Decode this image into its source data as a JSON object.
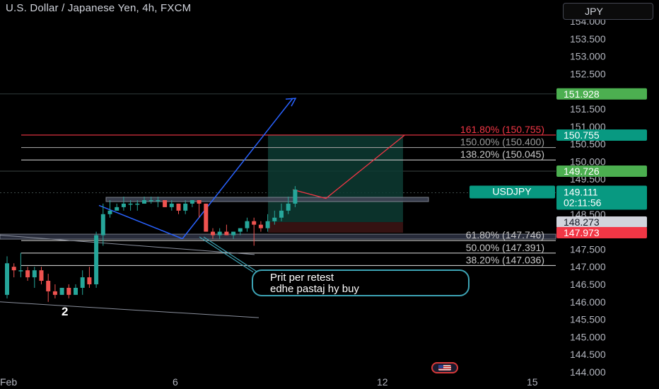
{
  "header": {
    "title": "U.S. Dollar / Japanese Yen, 4h, FXCM",
    "currency": "JPY"
  },
  "comment": {
    "line1": "Prit per retest",
    "line2": "edhe pastaj hy buy"
  },
  "wave_label": "2",
  "colors": {
    "bull": "#26a69a",
    "bear": "#ef5350",
    "green_badge": "#4caf50",
    "red_badge": "#f23645",
    "teal_badge": "#089981",
    "fib_red": "#f23645",
    "blue_line": "#2962ff"
  },
  "chart_data": {
    "type": "candlestick",
    "symbol": "USDJPY",
    "timeframe": "4h",
    "ylim": [
      144.0,
      154.0
    ],
    "y_ticks": [
      "154.000",
      "153.500",
      "153.000",
      "152.500",
      "151.500",
      "151.000",
      "150.500",
      "150.000",
      "149.500",
      "148.500",
      "147.500",
      "147.000",
      "146.500",
      "146.000",
      "145.500",
      "145.000",
      "144.500",
      "144.000"
    ],
    "x_ticks": [
      "Feb",
      "6",
      "12",
      "15"
    ],
    "candles": [
      [
        146.2,
        147.3,
        146.1,
        147.1
      ],
      [
        147.0,
        147.1,
        146.7,
        146.9
      ],
      [
        146.9,
        147.4,
        146.7,
        146.9
      ],
      [
        146.9,
        147.0,
        146.6,
        146.7
      ],
      [
        146.7,
        147.0,
        146.4,
        146.9
      ],
      [
        146.9,
        147.0,
        146.5,
        146.6
      ],
      [
        146.6,
        146.8,
        146.0,
        146.3
      ],
      [
        146.3,
        146.5,
        146.1,
        146.2
      ],
      [
        146.2,
        146.4,
        146.2,
        146.4
      ],
      [
        146.4,
        146.5,
        146.1,
        146.2
      ],
      [
        146.2,
        146.5,
        146.2,
        146.4
      ],
      [
        146.4,
        146.9,
        146.2,
        146.7
      ],
      [
        146.7,
        147.0,
        146.4,
        146.5
      ],
      [
        146.5,
        148.0,
        146.4,
        147.9
      ],
      [
        147.9,
        148.8,
        147.6,
        148.5
      ],
      [
        148.5,
        148.9,
        148.4,
        148.6
      ],
      [
        148.6,
        148.8,
        148.6,
        148.7
      ],
      [
        148.7,
        149.0,
        148.6,
        148.8
      ],
      [
        148.8,
        148.9,
        148.6,
        148.8
      ],
      [
        148.8,
        148.9,
        148.6,
        148.8
      ],
      [
        148.8,
        149.0,
        148.8,
        148.9
      ],
      [
        148.9,
        149.0,
        148.8,
        148.9
      ],
      [
        148.9,
        149.0,
        148.7,
        148.9
      ],
      [
        148.9,
        148.9,
        148.7,
        148.7
      ],
      [
        148.7,
        148.9,
        148.6,
        148.8
      ],
      [
        148.8,
        148.8,
        148.5,
        148.6
      ],
      [
        148.6,
        148.9,
        148.5,
        148.8
      ],
      [
        148.8,
        148.9,
        148.7,
        148.9
      ],
      [
        148.9,
        148.9,
        148.4,
        148.8
      ],
      [
        148.8,
        148.8,
        148.0,
        148.0
      ],
      [
        148.0,
        148.1,
        147.8,
        147.9
      ],
      [
        147.9,
        148.1,
        147.8,
        148.0
      ],
      [
        148.0,
        148.2,
        147.9,
        147.9
      ],
      [
        147.9,
        148.0,
        147.8,
        148.0
      ],
      [
        148.0,
        148.1,
        147.9,
        148.1
      ],
      [
        148.1,
        148.4,
        148.0,
        148.3
      ],
      [
        148.3,
        148.4,
        147.6,
        148.2
      ],
      [
        148.2,
        148.3,
        148.0,
        148.1
      ],
      [
        148.1,
        148.5,
        148.0,
        148.3
      ],
      [
        148.3,
        148.6,
        148.2,
        148.4
      ],
      [
        148.4,
        148.8,
        148.3,
        148.6
      ],
      [
        148.6,
        149.0,
        148.5,
        148.8
      ],
      [
        148.8,
        149.3,
        148.7,
        149.2
      ]
    ],
    "price_levels": [
      {
        "label": "151.928",
        "value": 151.928,
        "kind": "green"
      },
      {
        "label": "150.755",
        "value": 150.755,
        "kind": "teal"
      },
      {
        "label": "149.726",
        "value": 149.726,
        "kind": "green"
      },
      {
        "label": "USDJPY",
        "value": 149.111,
        "kind": "teal_big",
        "sub": "02:11:56",
        "price": "149.111"
      },
      {
        "label": "148.273",
        "value": 148.273,
        "kind": "grey"
      },
      {
        "label": "147.973",
        "value": 147.973,
        "kind": "red"
      }
    ],
    "fib_levels": [
      {
        "label": "161.80% (150.755)",
        "value": 150.755,
        "color": "#f23645"
      },
      {
        "label": "150.00% (150.400)",
        "value": 150.4,
        "color": "#9a9a9a"
      },
      {
        "label": "138.20% (150.045)",
        "value": 150.045,
        "color": "#c8c8c8"
      },
      {
        "label": "61.80% (147.746)",
        "value": 147.746,
        "color": "#c8c8c8"
      },
      {
        "label": "50.00% (147.391)",
        "value": 147.391,
        "color": "#c8c8c8"
      },
      {
        "label": "38.20% (147.036)",
        "value": 147.036,
        "color": "#c8c8c8"
      }
    ]
  }
}
